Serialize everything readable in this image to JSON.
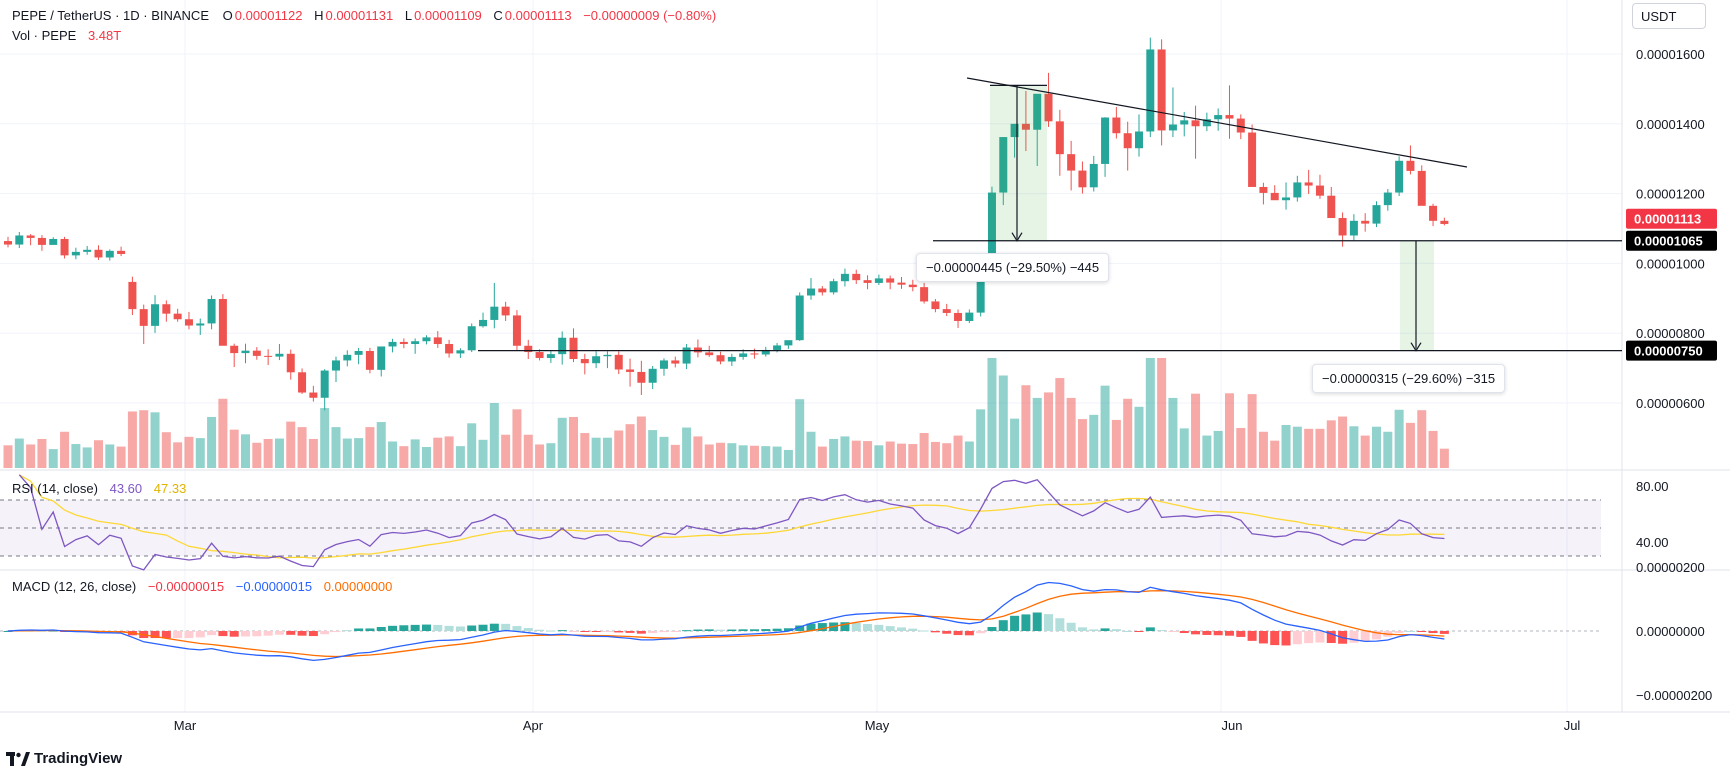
{
  "header": {
    "symbol": "PEPE / TetherUS · 1D · BINANCE",
    "open_label": "O",
    "open": "0.00001122",
    "high_label": "H",
    "high": "0.00001131",
    "low_label": "L",
    "low": "0.00001109",
    "close_label": "C",
    "close": "0.00001113",
    "change": "−0.00000009 (−0.80%)",
    "vol_label": "Vol · PEPE",
    "vol_value": "3.48T"
  },
  "currency_button": "USDT",
  "price_axis": {
    "ticks": [
      "0.00001600",
      "0.00001400",
      "0.00001200",
      "0.00001000",
      "0.00000800",
      "0.00000600"
    ]
  },
  "price_tags": {
    "last": "0.00001113",
    "level_high": "0.00001065",
    "level_low": "0.00000750"
  },
  "measurements": [
    {
      "text": "−0.00000445 (−29.50%) −445"
    },
    {
      "text": "−0.00000315 (−29.60%) −315"
    }
  ],
  "rsi": {
    "label": "RSI (14, close)",
    "value1": "43.60",
    "value2": "47.33",
    "ticks": [
      "80.00",
      "40.00"
    ]
  },
  "macd": {
    "label": "MACD (12, 26, close)",
    "value1": "−0.00000015",
    "value2": "−0.00000015",
    "value3": "0.00000000",
    "ticks": [
      "0.00000200",
      "0.00000000",
      "−0.00000200"
    ]
  },
  "time_axis": [
    "Mar",
    "Apr",
    "May",
    "Jun",
    "Jul"
  ],
  "brand": "TradingView",
  "colors": {
    "up": "#26a69a",
    "down": "#ef5350",
    "rsi": "#7e57c2",
    "rsi_ma": "#fdd835",
    "macd": "#2962ff",
    "signal": "#ff6d00"
  },
  "chart_data": {
    "type": "candlestick",
    "symbol": "PEPE / TetherUS",
    "interval": "1D",
    "ylim": [
      4.7e-06,
      1.67e-05
    ],
    "candles_ohlc": [
      [
        1.064e-05,
        1.076e-05,
        1.046e-05,
        1.054e-05
      ],
      [
        1.054e-05,
        1.09e-05,
        1.044e-05,
        1.08e-05
      ],
      [
        1.08e-05,
        1.084e-05,
        1.052e-05,
        1.073e-05
      ],
      [
        1.073e-05,
        1.081e-05,
        1.036e-05,
        1.053e-05
      ],
      [
        1.053e-05,
        1.075e-05,
        1.054e-05,
        1.07e-05
      ],
      [
        1.07e-05,
        1.076e-05,
        1.014e-05,
        1.023e-05
      ],
      [
        1.023e-05,
        1.045e-05,
        1.012e-05,
        1.033e-05
      ],
      [
        1.033e-05,
        1.05e-05,
        1.025e-05,
        1.039e-05
      ],
      [
        1.039e-05,
        1.052e-05,
        1.01e-05,
        1.017e-05
      ],
      [
        1.017e-05,
        1.04e-05,
        1.008e-05,
        1.036e-05
      ],
      [
        1.036e-05,
        1.048e-05,
        1.021e-05,
        1.027e-05
      ],
      [
        9.47e-06,
        9.62e-06,
        8.52e-06,
        8.69e-06
      ],
      [
        8.69e-06,
        8.82e-06,
        7.69e-06,
        8.21e-06
      ],
      [
        8.21e-06,
        9.09e-06,
        8.01e-06,
        8.83e-06
      ],
      [
        8.83e-06,
        8.94e-06,
        8.33e-06,
        8.56e-06
      ],
      [
        8.56e-06,
        8.7e-06,
        8.33e-06,
        8.4e-06
      ],
      [
        8.4e-06,
        8.61e-06,
        8.11e-06,
        8.22e-06
      ],
      [
        8.22e-06,
        8.42e-06,
        7.95e-06,
        8.28e-06
      ],
      [
        8.28e-06,
        9.08e-06,
        8.11e-06,
        8.98e-06
      ],
      [
        8.98e-06,
        9.12e-06,
        7.72e-06,
        7.64e-06
      ],
      [
        7.64e-06,
        7.7e-06,
        7.03e-06,
        7.43e-06
      ],
      [
        7.43e-06,
        7.7e-06,
        7.14e-06,
        7.5e-06
      ],
      [
        7.5e-06,
        7.6e-06,
        7.24e-06,
        7.35e-06
      ],
      [
        7.35e-06,
        7.54e-06,
        7.09e-06,
        7.33e-06
      ],
      [
        7.33e-06,
        7.69e-06,
        7.23e-06,
        7.41e-06
      ],
      [
        7.41e-06,
        7.53e-06,
        6.67e-06,
        6.88e-06
      ],
      [
        6.88e-06,
        6.99e-06,
        6.26e-06,
        6.3e-06
      ],
      [
        6.3e-06,
        6.49e-06,
        6.04e-06,
        6.15e-06
      ],
      [
        6.15e-06,
        6.97e-06,
        5.79e-06,
        6.93e-06
      ],
      [
        6.93e-06,
        7.33e-06,
        6.6e-06,
        7.22e-06
      ],
      [
        7.22e-06,
        7.51e-06,
        7.05e-06,
        7.38e-06
      ],
      [
        7.38e-06,
        7.58e-06,
        7.11e-06,
        7.49e-06
      ],
      [
        7.49e-06,
        7.58e-06,
        6.85e-06,
        6.95e-06
      ],
      [
        6.95e-06,
        7.61e-06,
        6.76e-06,
        7.62e-06
      ],
      [
        7.62e-06,
        7.84e-06,
        7.45e-06,
        7.75e-06
      ],
      [
        7.75e-06,
        7.85e-06,
        7.57e-06,
        7.69e-06
      ],
      [
        7.69e-06,
        7.85e-06,
        7.41e-06,
        7.77e-06
      ],
      [
        7.77e-06,
        7.94e-06,
        7.68e-06,
        7.88e-06
      ],
      [
        7.88e-06,
        8.06e-06,
        7.58e-06,
        7.69e-06
      ],
      [
        7.69e-06,
        7.81e-06,
        7.3e-06,
        7.42e-06
      ],
      [
        7.42e-06,
        7.57e-06,
        7.29e-06,
        7.51e-06
      ],
      [
        7.51e-06,
        8.28e-06,
        7.46e-06,
        8.2e-06
      ],
      [
        8.2e-06,
        8.59e-06,
        8.16e-06,
        8.38e-06
      ],
      [
        8.38e-06,
        9.44e-06,
        8.14e-06,
        8.76e-06
      ],
      [
        8.76e-06,
        8.9e-06,
        8.35e-06,
        8.51e-06
      ],
      [
        8.51e-06,
        8.66e-06,
        7.51e-06,
        7.64e-06
      ],
      [
        7.64e-06,
        7.81e-06,
        7.26e-06,
        7.46e-06
      ],
      [
        7.46e-06,
        7.54e-06,
        7.22e-06,
        7.29e-06
      ],
      [
        7.29e-06,
        7.5e-06,
        7.15e-06,
        7.4e-06
      ],
      [
        7.4e-06,
        8.05e-06,
        7.1e-06,
        7.87e-06
      ],
      [
        7.87e-06,
        8.14e-06,
        7.17e-06,
        7.26e-06
      ],
      [
        7.26e-06,
        7.41e-06,
        6.82e-06,
        7.14e-06
      ],
      [
        7.14e-06,
        7.48e-06,
        7e-06,
        7.34e-06
      ],
      [
        7.34e-06,
        7.48e-06,
        7e-06,
        7.38e-06
      ],
      [
        7.38e-06,
        7.48e-06,
        6.83e-06,
        6.96e-06
      ],
      [
        6.96e-06,
        7.27e-06,
        6.47e-06,
        6.89e-06
      ],
      [
        6.89e-06,
        7.21e-06,
        6.23e-06,
        6.58e-06
      ],
      [
        6.58e-06,
        7.06e-06,
        6.4e-06,
        6.98e-06
      ],
      [
        6.98e-06,
        7.28e-06,
        6.78e-06,
        7.22e-06
      ],
      [
        7.22e-06,
        7.33e-06,
        7.02e-06,
        7.13e-06
      ],
      [
        7.13e-06,
        7.69e-06,
        6.97e-06,
        7.59e-06
      ],
      [
        7.59e-06,
        7.82e-06,
        7.31e-06,
        7.45e-06
      ],
      [
        7.45e-06,
        7.64e-06,
        7.32e-06,
        7.37e-06
      ],
      [
        7.37e-06,
        7.47e-06,
        7.11e-06,
        7.19e-06
      ],
      [
        7.19e-06,
        7.41e-06,
        7.06e-06,
        7.32e-06
      ],
      [
        7.32e-06,
        7.54e-06,
        7.24e-06,
        7.42e-06
      ],
      [
        7.42e-06,
        7.56e-06,
        7.27e-06,
        7.39e-06
      ],
      [
        7.39e-06,
        7.61e-06,
        7.33e-06,
        7.52e-06
      ],
      [
        7.52e-06,
        7.72e-06,
        7.45e-06,
        7.65e-06
      ],
      [
        7.65e-06,
        7.74e-06,
        7.55e-06,
        7.8e-06
      ],
      [
        7.8e-06,
        9.17e-06,
        7.78e-06,
        9.08e-06
      ],
      [
        9.08e-06,
        9.58e-06,
        8.96e-06,
        9.28e-06
      ],
      [
        9.28e-06,
        9.35e-06,
        9.08e-06,
        9.17e-06
      ],
      [
        9.17e-06,
        9.56e-06,
        9.11e-06,
        9.49e-06
      ],
      [
        9.49e-06,
        9.85e-06,
        9.34e-06,
        9.7e-06
      ],
      [
        9.7e-06,
        9.82e-06,
        9.41e-06,
        9.52e-06
      ],
      [
        9.52e-06,
        9.66e-06,
        9.26e-06,
        9.44e-06
      ],
      [
        9.44e-06,
        9.68e-06,
        9.38e-06,
        9.57e-06
      ],
      [
        9.57e-06,
        9.65e-06,
        9.26e-06,
        9.45e-06
      ],
      [
        9.45e-06,
        9.61e-06,
        9.27e-06,
        9.39e-06
      ],
      [
        9.39e-06,
        9.53e-06,
        9.2e-06,
        9.32e-06
      ],
      [
        9.32e-06,
        9.44e-06,
        8.85e-06,
        8.91e-06
      ],
      [
        8.91e-06,
        8.98e-06,
        8.6e-06,
        8.69e-06
      ],
      [
        8.69e-06,
        8.84e-06,
        8.49e-06,
        8.58e-06
      ],
      [
        8.58e-06,
        8.68e-06,
        8.15e-06,
        8.35e-06
      ],
      [
        8.35e-06,
        8.68e-06,
        8.29e-06,
        8.59e-06
      ],
      [
        8.59e-06,
        9.63e-06,
        8.48e-06,
        9.62e-06
      ],
      [
        9.62e-06,
        1.22e-05,
        9.48e-06,
        1.203e-05
      ],
      [
        1.203e-05,
        1.362e-05,
        1.167e-05,
        1.362e-05
      ],
      [
        1.362e-05,
        1.396e-05,
        1.303e-05,
        1.4e-05
      ],
      [
        1.4e-05,
        1.494e-05,
        1.322e-05,
        1.383e-05
      ],
      [
        1.383e-05,
        1.421e-05,
        1.279e-05,
        1.486e-05
      ],
      [
        1.486e-05,
        1.546e-05,
        1.391e-05,
        1.407e-05
      ],
      [
        1.407e-05,
        1.44e-05,
        1.251e-05,
        1.313e-05
      ],
      [
        1.313e-05,
        1.351e-05,
        1.209e-05,
        1.266e-05
      ],
      [
        1.266e-05,
        1.292e-05,
        1.2e-05,
        1.218e-05
      ],
      [
        1.218e-05,
        1.308e-05,
        1.206e-05,
        1.285e-05
      ],
      [
        1.285e-05,
        1.419e-05,
        1.248e-05,
        1.418e-05
      ],
      [
        1.418e-05,
        1.448e-05,
        1.358e-05,
        1.373e-05
      ],
      [
        1.373e-05,
        1.406e-05,
        1.266e-05,
        1.33e-05
      ],
      [
        1.33e-05,
        1.427e-05,
        1.306e-05,
        1.378e-05
      ],
      [
        1.378e-05,
        1.647e-05,
        1.362e-05,
        1.613e-05
      ],
      [
        1.613e-05,
        1.642e-05,
        1.338e-05,
        1.381e-05
      ],
      [
        1.381e-05,
        1.504e-05,
        1.362e-05,
        1.398e-05
      ],
      [
        1.398e-05,
        1.434e-05,
        1.364e-05,
        1.41e-05
      ],
      [
        1.41e-05,
        1.452e-05,
        1.3e-05,
        1.393e-05
      ],
      [
        1.393e-05,
        1.432e-05,
        1.379e-05,
        1.413e-05
      ],
      [
        1.413e-05,
        1.444e-05,
        1.38e-05,
        1.425e-05
      ],
      [
        1.425e-05,
        1.51e-05,
        1.357e-05,
        1.415e-05
      ],
      [
        1.415e-05,
        1.427e-05,
        1.356e-05,
        1.375e-05
      ],
      [
        1.375e-05,
        1.398e-05,
        1.247e-05,
        1.219e-05
      ],
      [
        1.219e-05,
        1.231e-05,
        1.169e-05,
        1.202e-05
      ],
      [
        1.202e-05,
        1.224e-05,
        1.183e-05,
        1.181e-05
      ],
      [
        1.181e-05,
        1.232e-05,
        1.154e-05,
        1.189e-05
      ],
      [
        1.189e-05,
        1.251e-05,
        1.177e-05,
        1.232e-05
      ],
      [
        1.232e-05,
        1.268e-05,
        1.199e-05,
        1.223e-05
      ],
      [
        1.223e-05,
        1.254e-05,
        1.185e-05,
        1.194e-05
      ],
      [
        1.194e-05,
        1.219e-05,
        1.13e-05,
        1.13e-05
      ],
      [
        1.13e-05,
        1.146e-05,
        1.048e-05,
        1.08e-05
      ],
      [
        1.08e-05,
        1.141e-05,
        1.066e-05,
        1.122e-05
      ],
      [
        1.122e-05,
        1.144e-05,
        1.091e-05,
        1.114e-05
      ],
      [
        1.114e-05,
        1.178e-05,
        1.104e-05,
        1.167e-05
      ],
      [
        1.167e-05,
        1.213e-05,
        1.151e-05,
        1.203e-05
      ],
      [
        1.203e-05,
        1.307e-05,
        1.193e-05,
        1.294e-05
      ],
      [
        1.294e-05,
        1.338e-05,
        1.255e-05,
        1.265e-05
      ],
      [
        1.265e-05,
        1.281e-05,
        1.168e-05,
        1.165e-05
      ],
      [
        1.165e-05,
        1.171e-05,
        1.107e-05,
        1.122e-05
      ],
      [
        1.122e-05,
        1.131e-05,
        1.109e-05,
        1.113e-05
      ]
    ],
    "rsi_levels": {
      "upper": 70,
      "middle": 50,
      "lower": 30
    },
    "annotations": [
      "horizontal level 0.00001065",
      "horizontal level 0.00000750",
      "descending trendline",
      "measure −29.50%",
      "measure −29.60%"
    ]
  }
}
